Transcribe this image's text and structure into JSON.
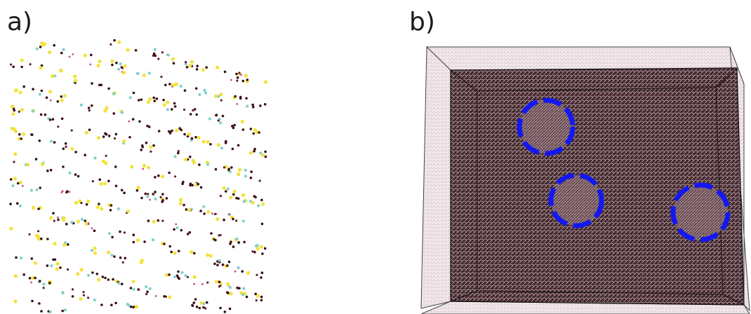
{
  "panel_a": {
    "label": "a)",
    "particle_colors": [
      "#3b0f12",
      "#f2e33c",
      "#7fd0d0",
      "#5a1f2a",
      "#c94a8a"
    ]
  },
  "panel_b": {
    "label": "b)",
    "box_edge_color": "#333333",
    "box_face_color": "#c7b2b8",
    "bulk_color": "#3d2328",
    "circle_color": "#1418f0",
    "highlight_count": 3
  }
}
